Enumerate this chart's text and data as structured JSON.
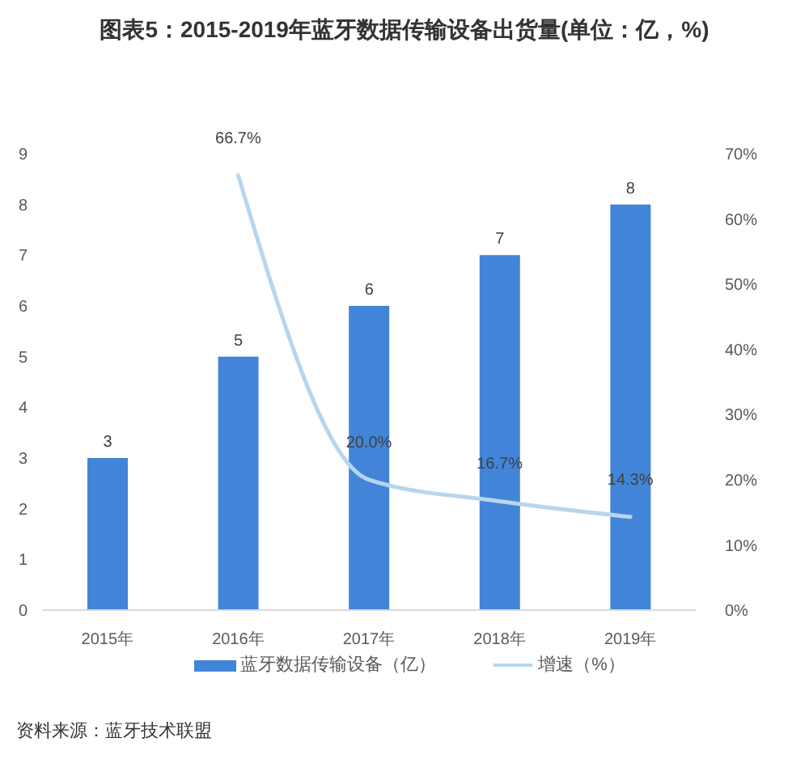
{
  "chart_data": {
    "type": "bar",
    "title": "图表5：2015-2019年蓝牙数据传输设备出货量(单位：亿，%)",
    "categories": [
      "2015年",
      "2016年",
      "2017年",
      "2018年",
      "2019年"
    ],
    "series": [
      {
        "name": "蓝牙数据传输设备（亿）",
        "color": "#4285d8",
        "values": [
          3,
          5,
          6,
          7,
          8
        ],
        "value_labels": [
          "3",
          "5",
          "6",
          "7",
          "8"
        ]
      },
      {
        "name": "增速（%）",
        "type": "line",
        "axis": "y2",
        "color": "#b8d5ee",
        "values": [
          null,
          66.7,
          20.0,
          16.7,
          14.3
        ],
        "value_labels": [
          null,
          "66.7%",
          "20.0%",
          "16.7%",
          "14.3%"
        ]
      }
    ],
    "ylim": [
      0,
      9
    ],
    "yticks": [
      0,
      1,
      2,
      3,
      4,
      5,
      6,
      7,
      8,
      9
    ],
    "y2lim": [
      0,
      70
    ],
    "y2ticks": [
      {
        "value": 0,
        "label": "0%"
      },
      {
        "value": 10,
        "label": "10%"
      },
      {
        "value": 20,
        "label": "20%"
      },
      {
        "value": 30,
        "label": "30%"
      },
      {
        "value": 40,
        "label": "40%"
      },
      {
        "value": 50,
        "label": "50%"
      },
      {
        "value": 60,
        "label": "60%"
      },
      {
        "value": 70,
        "label": "70%"
      }
    ],
    "legend": "bottom",
    "annotations": [
      "资料来源：蓝牙技术联盟"
    ]
  }
}
